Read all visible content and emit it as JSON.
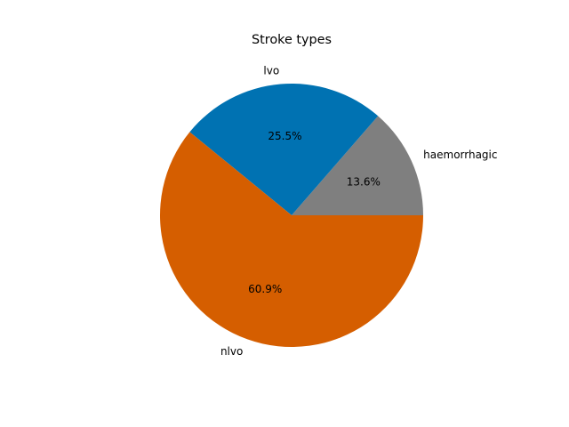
{
  "chart_data": {
    "type": "pie",
    "title": "Stroke types",
    "start_angle_deg": 0,
    "direction": "counterclockwise",
    "slices": [
      {
        "label": "haemorrhagic",
        "value": 13.6,
        "pct_label": "13.6%",
        "color": "#7f7f7f"
      },
      {
        "label": "lvo",
        "value": 25.5,
        "pct_label": "25.5%",
        "color": "#0072b2"
      },
      {
        "label": "nlvo",
        "value": 60.9,
        "pct_label": "60.9%",
        "color": "#d55e00"
      }
    ]
  }
}
